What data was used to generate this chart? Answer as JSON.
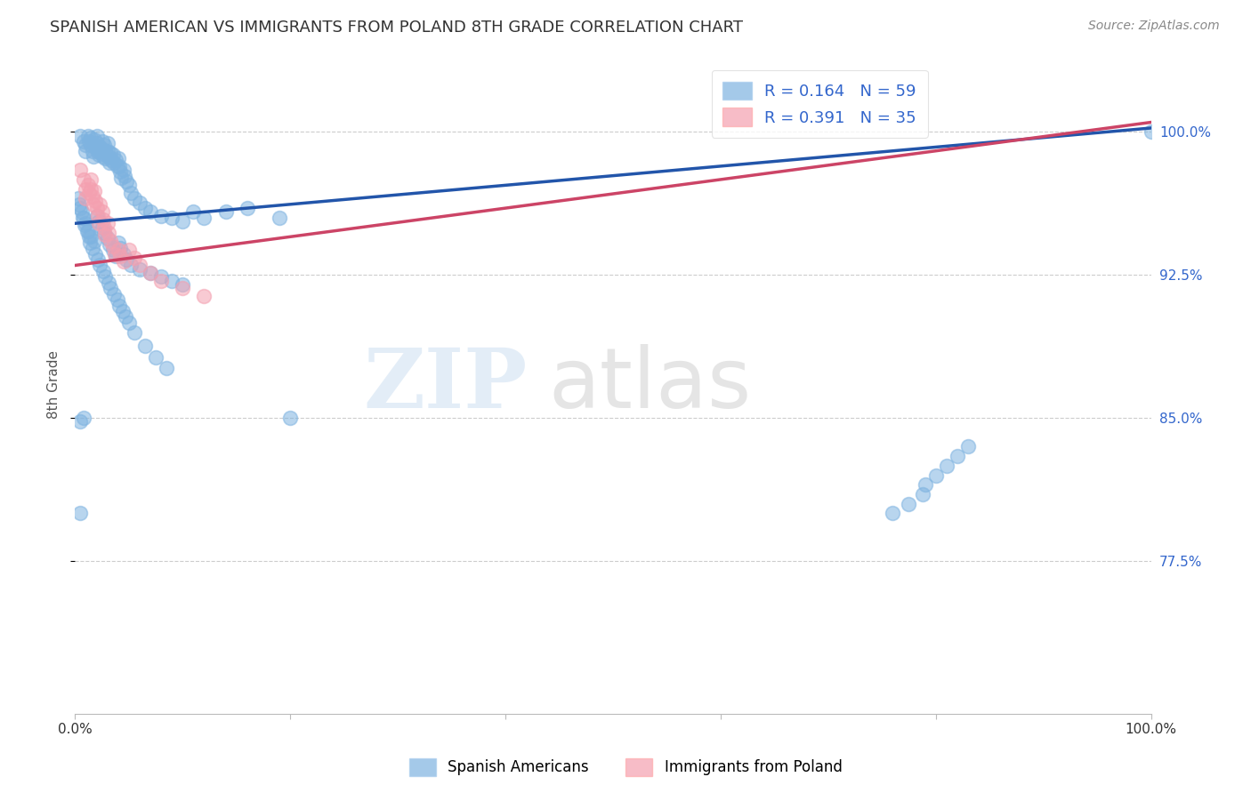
{
  "title": "SPANISH AMERICAN VS IMMIGRANTS FROM POLAND 8TH GRADE CORRELATION CHART",
  "source": "Source: ZipAtlas.com",
  "ylabel": "8th Grade",
  "xlim": [
    0.0,
    1.0
  ],
  "ylim": [
    0.695,
    1.04
  ],
  "yticks": [
    0.775,
    0.85,
    0.925,
    1.0
  ],
  "ytick_labels": [
    "77.5%",
    "85.0%",
    "92.5%",
    "100.0%"
  ],
  "xticks": [
    0.0,
    0.2,
    0.4,
    0.6,
    0.8,
    1.0
  ],
  "xtick_labels": [
    "0.0%",
    "",
    "",
    "",
    "",
    "100.0%"
  ],
  "blue_color": "#7EB3E0",
  "pink_color": "#F4A0B0",
  "blue_line_color": "#2255AA",
  "pink_line_color": "#CC4466",
  "legend_blue_label": "R = 0.164   N = 59",
  "legend_pink_label": "R = 0.391   N = 35",
  "legend_label_blue": "Spanish Americans",
  "legend_label_pink": "Immigrants from Poland",
  "watermark_zip": "ZIP",
  "watermark_atlas": "atlas",
  "blue_line_x0": 0.0,
  "blue_line_y0": 0.952,
  "blue_line_x1": 1.0,
  "blue_line_y1": 1.002,
  "pink_line_x0": 0.0,
  "pink_line_y0": 0.93,
  "pink_line_x1": 1.0,
  "pink_line_y1": 1.005,
  "blue_scatter_x": [
    0.005,
    0.008,
    0.01,
    0.01,
    0.012,
    0.013,
    0.015,
    0.015,
    0.016,
    0.017,
    0.018,
    0.019,
    0.02,
    0.02,
    0.021,
    0.022,
    0.023,
    0.024,
    0.025,
    0.025,
    0.026,
    0.027,
    0.028,
    0.028,
    0.03,
    0.03,
    0.031,
    0.032,
    0.033,
    0.034,
    0.035,
    0.036,
    0.038,
    0.039,
    0.04,
    0.041,
    0.042,
    0.043,
    0.045,
    0.046,
    0.048,
    0.05,
    0.052,
    0.055,
    0.06,
    0.065,
    0.07,
    0.08,
    0.09,
    0.1,
    0.11,
    0.12,
    0.14,
    0.16,
    0.19,
    0.005,
    0.008,
    0.2,
    1.0
  ],
  "blue_scatter_y": [
    0.998,
    0.995,
    0.993,
    0.99,
    0.998,
    0.995,
    0.997,
    0.993,
    0.99,
    0.987,
    0.996,
    0.992,
    0.998,
    0.994,
    0.99,
    0.988,
    0.992,
    0.989,
    0.995,
    0.991,
    0.987,
    0.993,
    0.99,
    0.986,
    0.994,
    0.99,
    0.987,
    0.984,
    0.989,
    0.985,
    0.988,
    0.984,
    0.985,
    0.982,
    0.986,
    0.982,
    0.979,
    0.976,
    0.98,
    0.977,
    0.974,
    0.972,
    0.968,
    0.965,
    0.963,
    0.96,
    0.958,
    0.956,
    0.955,
    0.953,
    0.958,
    0.955,
    0.958,
    0.96,
    0.955,
    0.848,
    0.85,
    0.85,
    1.0
  ],
  "blue_scatter_x2": [
    0.005,
    0.008,
    0.01,
    0.012,
    0.015,
    0.018,
    0.02,
    0.022,
    0.025,
    0.027,
    0.03,
    0.032,
    0.035,
    0.038,
    0.04,
    0.042,
    0.045,
    0.048,
    0.052,
    0.06,
    0.07,
    0.08,
    0.09,
    0.1,
    0.003,
    0.004,
    0.006,
    0.007,
    0.009,
    0.011,
    0.013,
    0.014,
    0.016,
    0.019,
    0.021,
    0.023,
    0.026,
    0.028,
    0.031,
    0.033,
    0.036,
    0.039,
    0.041,
    0.044,
    0.047,
    0.05,
    0.055,
    0.065,
    0.075,
    0.085,
    0.005,
    0.76,
    0.775,
    0.788,
    0.79,
    0.8,
    0.81,
    0.82,
    0.83
  ],
  "blue_scatter_y2": [
    0.96,
    0.955,
    0.952,
    0.948,
    0.945,
    0.943,
    0.956,
    0.953,
    0.95,
    0.947,
    0.944,
    0.941,
    0.938,
    0.935,
    0.942,
    0.939,
    0.936,
    0.933,
    0.93,
    0.928,
    0.926,
    0.924,
    0.922,
    0.92,
    0.965,
    0.962,
    0.958,
    0.955,
    0.951,
    0.948,
    0.945,
    0.942,
    0.939,
    0.936,
    0.933,
    0.93,
    0.927,
    0.924,
    0.921,
    0.918,
    0.915,
    0.912,
    0.909,
    0.906,
    0.903,
    0.9,
    0.895,
    0.888,
    0.882,
    0.876,
    0.8,
    0.8,
    0.805,
    0.81,
    0.815,
    0.82,
    0.825,
    0.83,
    0.835
  ],
  "pink_scatter_x": [
    0.005,
    0.008,
    0.01,
    0.01,
    0.012,
    0.013,
    0.015,
    0.015,
    0.016,
    0.017,
    0.018,
    0.019,
    0.02,
    0.021,
    0.022,
    0.023,
    0.025,
    0.026,
    0.027,
    0.028,
    0.03,
    0.031,
    0.033,
    0.035,
    0.037,
    0.04,
    0.042,
    0.045,
    0.05,
    0.055,
    0.06,
    0.07,
    0.08,
    0.1,
    0.12
  ],
  "pink_scatter_y": [
    0.98,
    0.975,
    0.97,
    0.965,
    0.972,
    0.968,
    0.975,
    0.97,
    0.966,
    0.962,
    0.969,
    0.964,
    0.96,
    0.956,
    0.952,
    0.962,
    0.958,
    0.954,
    0.95,
    0.946,
    0.952,
    0.947,
    0.943,
    0.94,
    0.936,
    0.938,
    0.935,
    0.932,
    0.938,
    0.934,
    0.93,
    0.926,
    0.922,
    0.918,
    0.914
  ]
}
